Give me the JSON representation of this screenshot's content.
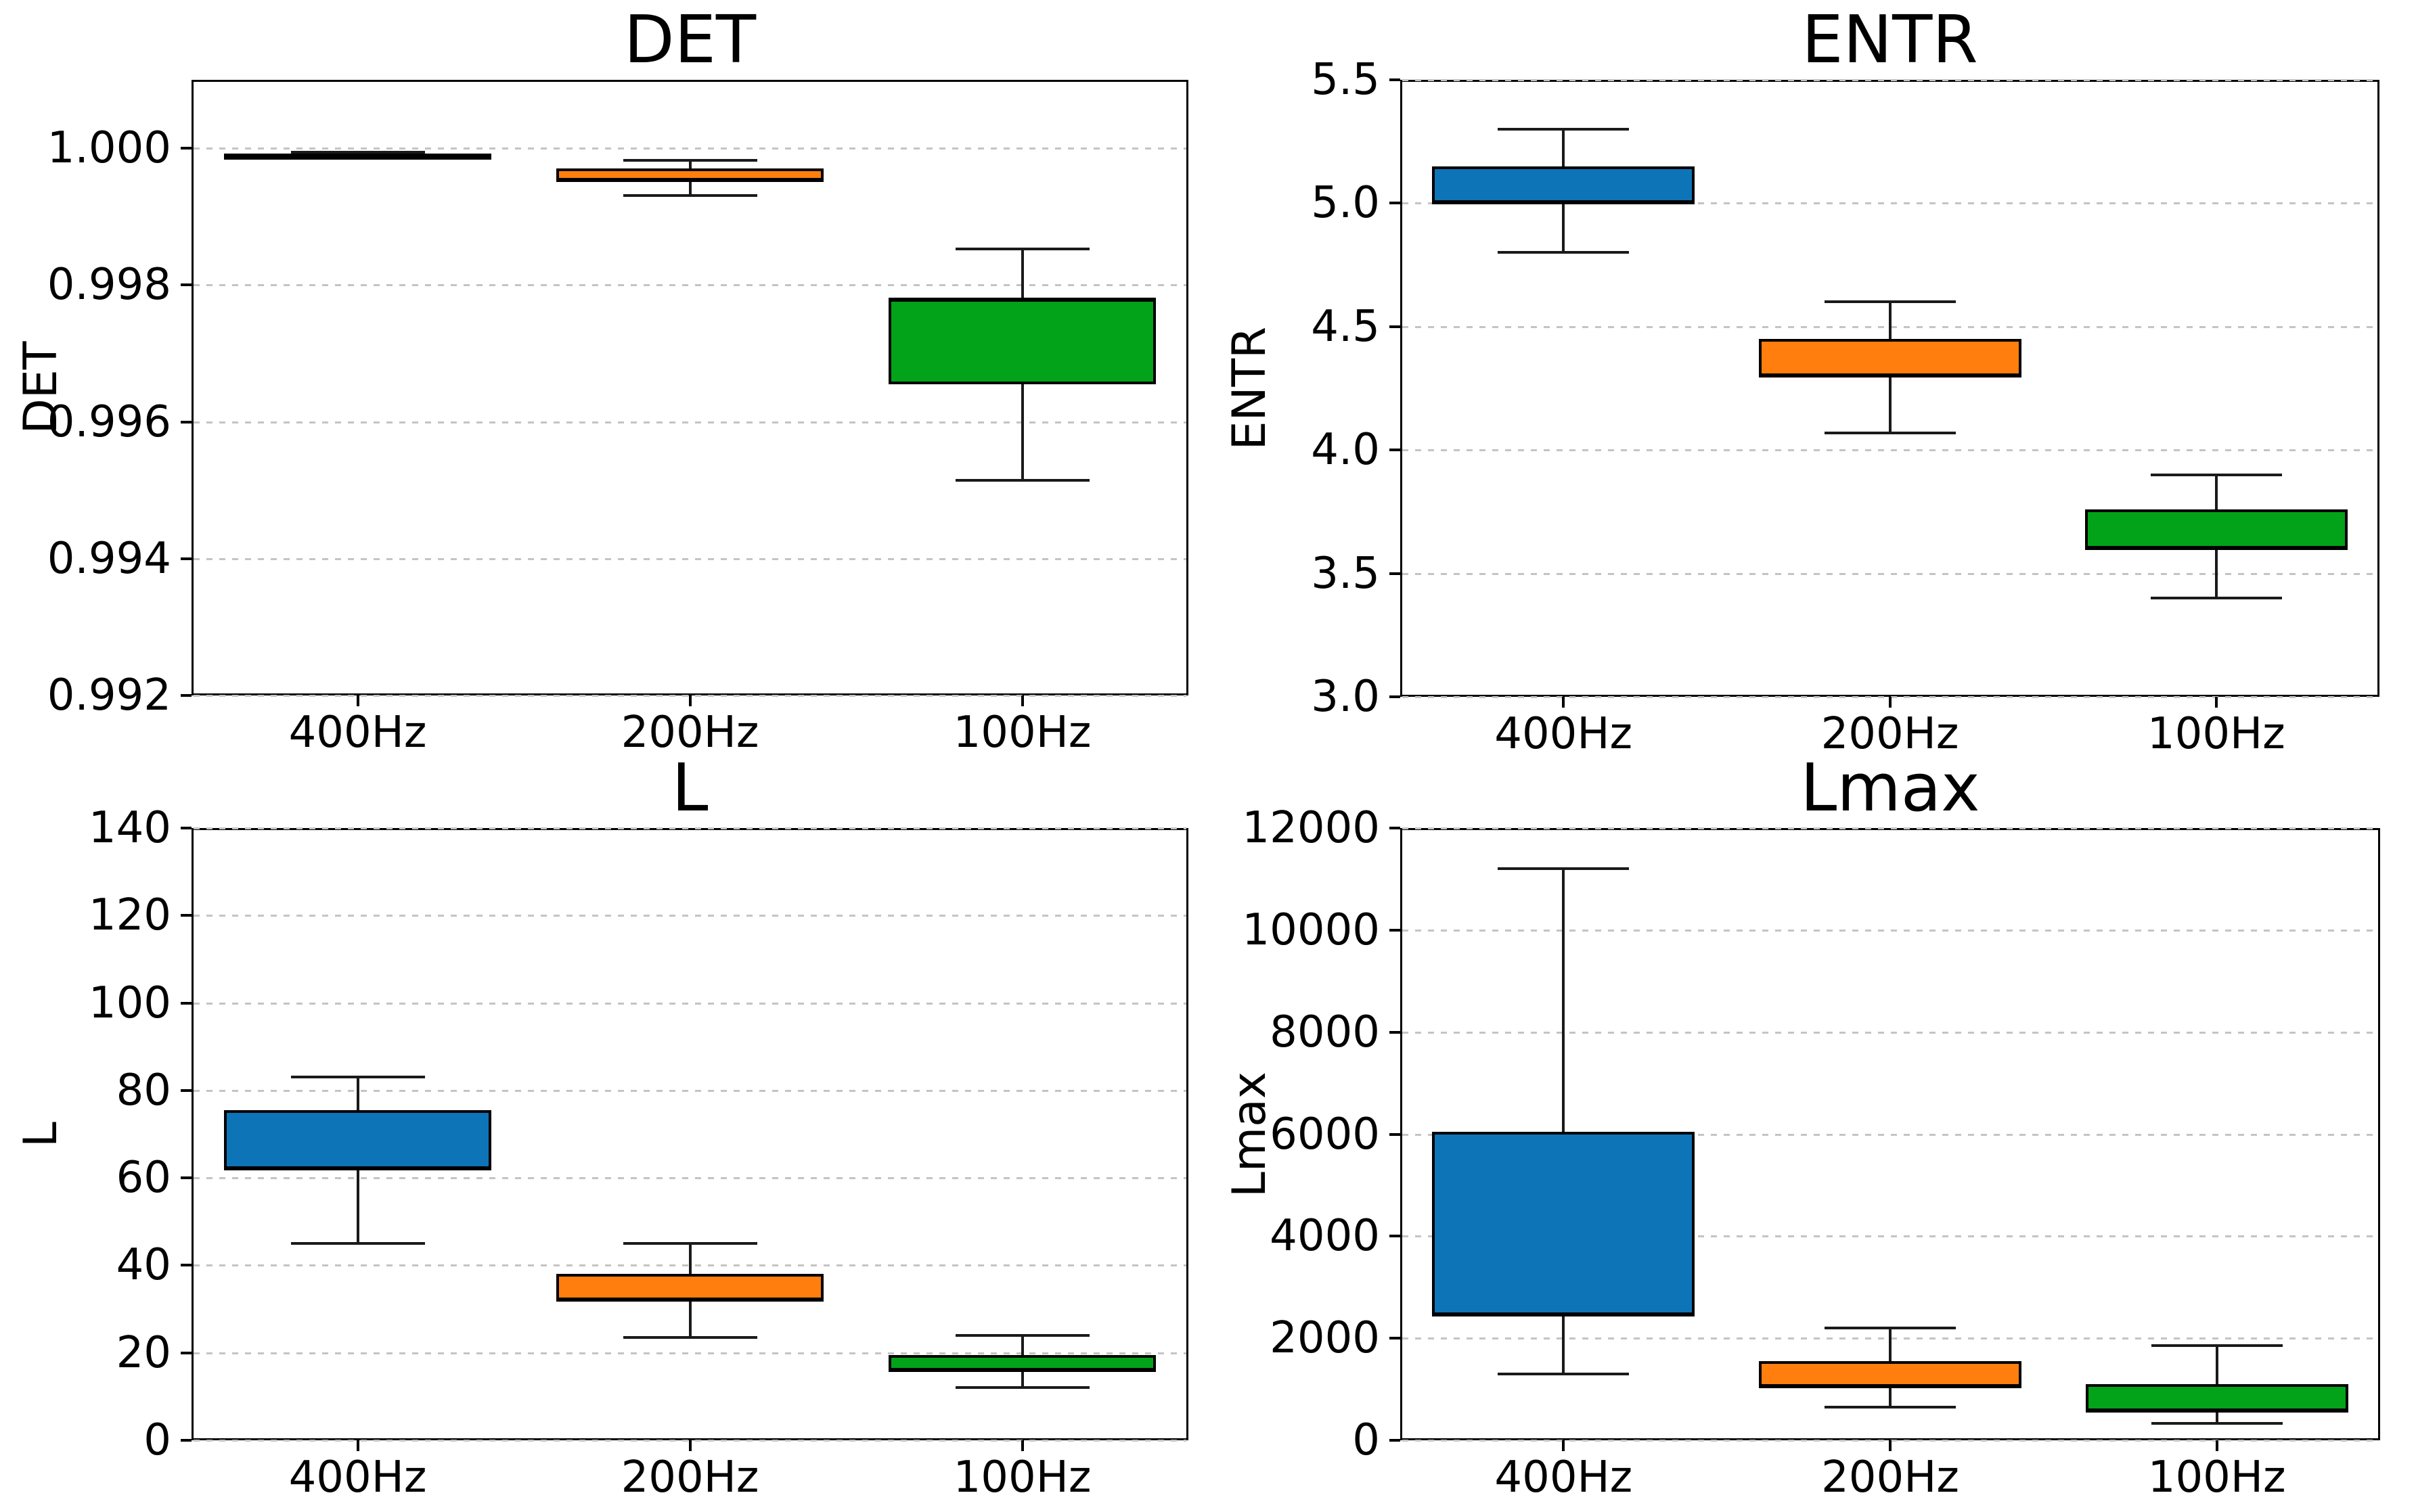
{
  "figure": {
    "background": "#ffffff",
    "grid_color": "#c4c4c4",
    "box_edge_color": "#000000",
    "whisker_color": "#1a1a1a",
    "palette": {
      "400Hz": "#0d74b8",
      "200Hz": "#ff7e0e",
      "100Hz": "#02a318"
    }
  },
  "chart_data": [
    {
      "type": "box",
      "title": "DET",
      "ylabel": "DET",
      "xlabel": "",
      "categories": [
        "400Hz",
        "200Hz",
        "100Hz"
      ],
      "ylim": [
        0.992,
        1.001
      ],
      "grid": "y-dotted",
      "legend": "none",
      "yticks": [
        {
          "value": 1.0,
          "label": "1.000"
        },
        {
          "value": 0.998,
          "label": "0.998"
        },
        {
          "value": 0.996,
          "label": "0.996"
        },
        {
          "value": 0.994,
          "label": "0.994"
        },
        {
          "value": 0.992,
          "label": "0.992"
        }
      ],
      "boxes": [
        {
          "category": "400Hz",
          "color": "#0d74b8",
          "whislo": 0.99986,
          "q1": 0.99989,
          "med": 0.9999,
          "q3": 0.99991,
          "whishi": 0.99994
        },
        {
          "category": "200Hz",
          "color": "#ff7e0e",
          "whislo": 0.99931,
          "q1": 0.99953,
          "med": 0.99953,
          "q3": 0.9997,
          "whishi": 0.99982
        },
        {
          "category": "100Hz",
          "color": "#02a318",
          "whislo": 0.99515,
          "q1": 0.99655,
          "med": 0.9978,
          "q3": 0.9978,
          "whishi": 0.99853
        }
      ]
    },
    {
      "type": "box",
      "title": "ENTR",
      "ylabel": "ENTR",
      "xlabel": "",
      "categories": [
        "400Hz",
        "200Hz",
        "100Hz"
      ],
      "ylim": [
        3.0,
        5.5
      ],
      "grid": "y-dotted",
      "legend": "none",
      "yticks": [
        {
          "value": 5.5,
          "label": "5.5"
        },
        {
          "value": 5.0,
          "label": "5.0"
        },
        {
          "value": 4.5,
          "label": "4.5"
        },
        {
          "value": 4.0,
          "label": "4.0"
        },
        {
          "value": 3.5,
          "label": "3.5"
        },
        {
          "value": 3.0,
          "label": "3.0"
        }
      ],
      "boxes": [
        {
          "category": "400Hz",
          "color": "#0d74b8",
          "whislo": 4.8,
          "q1": 5.0,
          "med": 5.0,
          "q3": 5.15,
          "whishi": 5.3
        },
        {
          "category": "200Hz",
          "color": "#ff7e0e",
          "whislo": 4.07,
          "q1": 4.3,
          "med": 4.3,
          "q3": 4.45,
          "whishi": 4.6
        },
        {
          "category": "100Hz",
          "color": "#02a318",
          "whislo": 3.4,
          "q1": 3.6,
          "med": 3.6,
          "q3": 3.76,
          "whishi": 3.9
        }
      ]
    },
    {
      "type": "box",
      "title": "L",
      "ylabel": "L",
      "xlabel": "",
      "categories": [
        "400Hz",
        "200Hz",
        "100Hz"
      ],
      "ylim": [
        0,
        140
      ],
      "grid": "y-dotted",
      "legend": "none",
      "yticks": [
        {
          "value": 140,
          "label": "140"
        },
        {
          "value": 120,
          "label": "120"
        },
        {
          "value": 100,
          "label": "100"
        },
        {
          "value": 80,
          "label": "80"
        },
        {
          "value": 60,
          "label": "60"
        },
        {
          "value": 40,
          "label": "40"
        },
        {
          "value": 20,
          "label": "20"
        },
        {
          "value": 0,
          "label": "0"
        }
      ],
      "boxes": [
        {
          "category": "400Hz",
          "color": "#0d74b8",
          "whislo": 45.0,
          "q1": 62.0,
          "med": 62.0,
          "q3": 75.5,
          "whishi": 83.0
        },
        {
          "category": "200Hz",
          "color": "#ff7e0e",
          "whislo": 23.5,
          "q1": 32.0,
          "med": 32.0,
          "q3": 38.0,
          "whishi": 45.0
        },
        {
          "category": "100Hz",
          "color": "#02a318",
          "whislo": 12.0,
          "q1": 16.0,
          "med": 16.0,
          "q3": 19.5,
          "whishi": 24.0
        }
      ]
    },
    {
      "type": "box",
      "title": "Lmax",
      "ylabel": "Lmax",
      "xlabel": "",
      "categories": [
        "400Hz",
        "200Hz",
        "100Hz"
      ],
      "ylim": [
        0,
        12000
      ],
      "grid": "y-dotted",
      "legend": "none",
      "yticks": [
        {
          "value": 12000,
          "label": "12000"
        },
        {
          "value": 10000,
          "label": "10000"
        },
        {
          "value": 8000,
          "label": "8000"
        },
        {
          "value": 6000,
          "label": "6000"
        },
        {
          "value": 4000,
          "label": "4000"
        },
        {
          "value": 2000,
          "label": "2000"
        },
        {
          "value": 0,
          "label": "0"
        }
      ],
      "boxes": [
        {
          "category": "400Hz",
          "color": "#0d74b8",
          "whislo": 1300,
          "q1": 2450,
          "med": 2450,
          "q3": 6050,
          "whishi": 11200
        },
        {
          "category": "200Hz",
          "color": "#ff7e0e",
          "whislo": 650,
          "q1": 1050,
          "med": 1050,
          "q3": 1550,
          "whishi": 2200
        },
        {
          "category": "100Hz",
          "color": "#02a318",
          "whislo": 330,
          "q1": 570,
          "med": 570,
          "q3": 1100,
          "whishi": 1850
        }
      ]
    }
  ]
}
